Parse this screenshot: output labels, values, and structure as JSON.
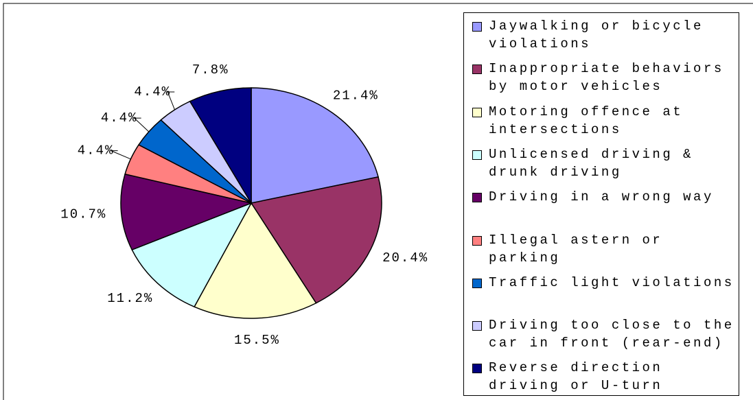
{
  "chart_data": {
    "type": "pie",
    "categories": [
      "Jaywalking or bicycle violations",
      "Inappropriate behaviors by motor vehicles",
      "Motoring offence at intersections",
      "Unlicensed driving & drunk driving",
      "Driving in a wrong way",
      "Illegal astern or parking",
      "Traffic light violations",
      "Driving too close to the car in front (rear-end)",
      "Reverse direction driving or U-turn"
    ],
    "values": [
      21.4,
      20.4,
      15.5,
      11.2,
      10.7,
      4.4,
      4.4,
      4.4,
      7.8
    ],
    "value_labels": [
      "21.4%",
      "20.4%",
      "15.5%",
      "11.2%",
      "10.7%",
      "4.4%",
      "4.4%",
      "4.4%",
      "7.8%"
    ],
    "colors": [
      "#9999ff",
      "#993366",
      "#ffffcc",
      "#ccffff",
      "#660066",
      "#ff8080",
      "#0066cc",
      "#ccccff",
      "#000080"
    ],
    "legend": "right"
  }
}
